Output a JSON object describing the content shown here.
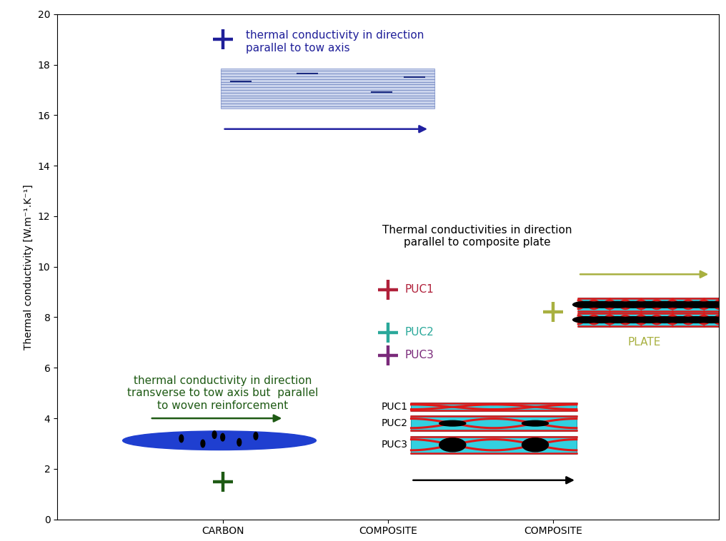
{
  "chart_data": {
    "type": "scatter",
    "ylabel": "Thermal conductivity [W.m⁻¹.K⁻¹]",
    "categories": [
      "CARBON",
      "COMPOSITE",
      "COMPOSITE"
    ],
    "ylim": [
      0,
      20
    ],
    "yticks": [
      0,
      2,
      4,
      6,
      8,
      10,
      12,
      14,
      16,
      18,
      20
    ],
    "marker": "plus",
    "grid": false,
    "series": [
      {
        "name": "thermal conductivity in direction\nparallel to tow axis",
        "color": "#1f1f99",
        "values": [
          19,
          null,
          null
        ]
      },
      {
        "name": "thermal conductivity in direction\ntransverse to tow axis but  parallel\nto woven reinforcement",
        "color": "#1e5a14",
        "values": [
          1.5,
          null,
          null
        ]
      },
      {
        "name": "PUC1",
        "color": "#b0203a",
        "values": [
          null,
          9.1,
          null
        ]
      },
      {
        "name": "PUC2",
        "color": "#2aa89a",
        "values": [
          null,
          7.4,
          null
        ]
      },
      {
        "name": "PUC3",
        "color": "#7a2a7a",
        "values": [
          null,
          6.5,
          null
        ]
      },
      {
        "name": "PLATE",
        "color": "#a8b040",
        "values": [
          null,
          null,
          8.2
        ]
      }
    ],
    "annotations": [
      "Thermal conductivities in direction\nparallel to composite plate"
    ]
  }
}
